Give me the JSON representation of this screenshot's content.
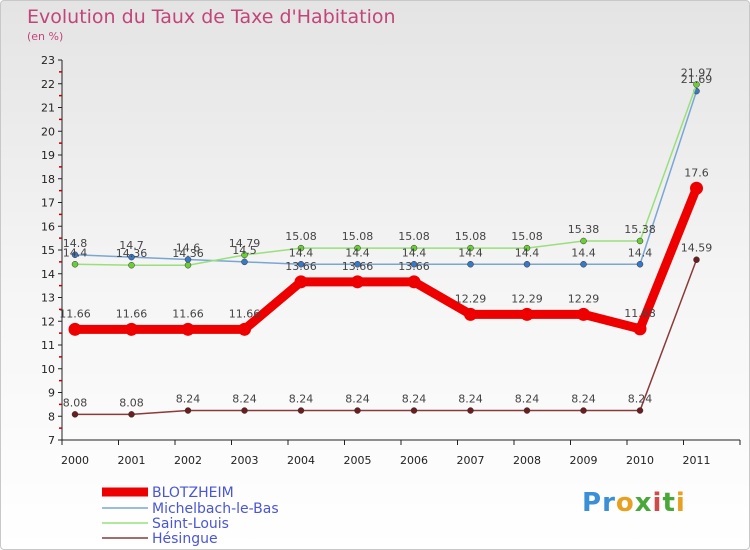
{
  "chart_data": {
    "type": "line",
    "title": "Evolution du Taux de Taxe d'Habitation",
    "subtitle": "(en %)",
    "xlabel": "",
    "ylabel": "",
    "ylim": [
      7,
      23
    ],
    "yticks": [
      7,
      8,
      9,
      10,
      11,
      12,
      13,
      14,
      15,
      16,
      17,
      18,
      19,
      20,
      21,
      22,
      23
    ],
    "categories": [
      "2000",
      "2001",
      "2002",
      "2003",
      "2004",
      "2005",
      "2006",
      "2007",
      "2008",
      "2009",
      "2010",
      "2011"
    ],
    "legend_position": "bottom-left",
    "series": [
      {
        "name": "BLOTZHEIM",
        "color": "#ee0000",
        "marker_color": "#ee0000",
        "values": [
          11.66,
          11.66,
          11.66,
          11.66,
          13.66,
          13.66,
          13.66,
          12.29,
          12.29,
          12.29,
          11.68,
          17.6
        ],
        "labels": [
          "11.66",
          "11.66",
          "11.66",
          "11.66",
          "13.66",
          "13.66",
          "13.66",
          "12.29",
          "12.29",
          "12.29",
          "11.68",
          "17.6"
        ]
      },
      {
        "name": "Michelbach-le-Bas",
        "color": "#7aa6d6",
        "marker_color": "#3a78c3",
        "values": [
          14.8,
          14.7,
          14.6,
          14.5,
          14.4,
          14.4,
          14.4,
          14.4,
          14.4,
          14.4,
          14.4,
          21.69
        ],
        "labels": [
          "14.8",
          "14.7",
          "14.6",
          "14.5",
          "14.4",
          "14.4",
          "14.4",
          "14.4",
          "14.4",
          "14.4",
          "14.4",
          "21.69"
        ]
      },
      {
        "name": "Saint-Louis",
        "color": "#99e07a",
        "marker_color": "#6ccc3a",
        "values": [
          14.4,
          14.36,
          14.36,
          14.79,
          15.08,
          15.08,
          15.08,
          15.08,
          15.08,
          15.38,
          15.38,
          21.97
        ],
        "labels": [
          "14.4",
          "14.36",
          "14.36",
          "14.79",
          "15.08",
          "15.08",
          "15.08",
          "15.08",
          "15.08",
          "15.38",
          "15.38",
          "21.97"
        ]
      },
      {
        "name": "Hésingue",
        "color": "#8b3a3a",
        "marker_color": "#6a1e1e",
        "values": [
          8.08,
          8.08,
          8.24,
          8.24,
          8.24,
          8.24,
          8.24,
          8.24,
          8.24,
          8.24,
          8.24,
          14.59
        ],
        "labels": [
          "8.08",
          "8.08",
          "8.24",
          "8.24",
          "8.24",
          "8.24",
          "8.24",
          "8.24",
          "8.24",
          "8.24",
          "8.24",
          "14.59"
        ]
      }
    ]
  },
  "brand": {
    "letters": [
      "P",
      "r",
      "o",
      "x",
      "i",
      "t",
      "i"
    ],
    "colors": [
      "#3a8fd6",
      "#3a8fd6",
      "#e8a020",
      "#4aa83a",
      "#d04a4a",
      "#4aa83a",
      "#e8a020"
    ]
  }
}
